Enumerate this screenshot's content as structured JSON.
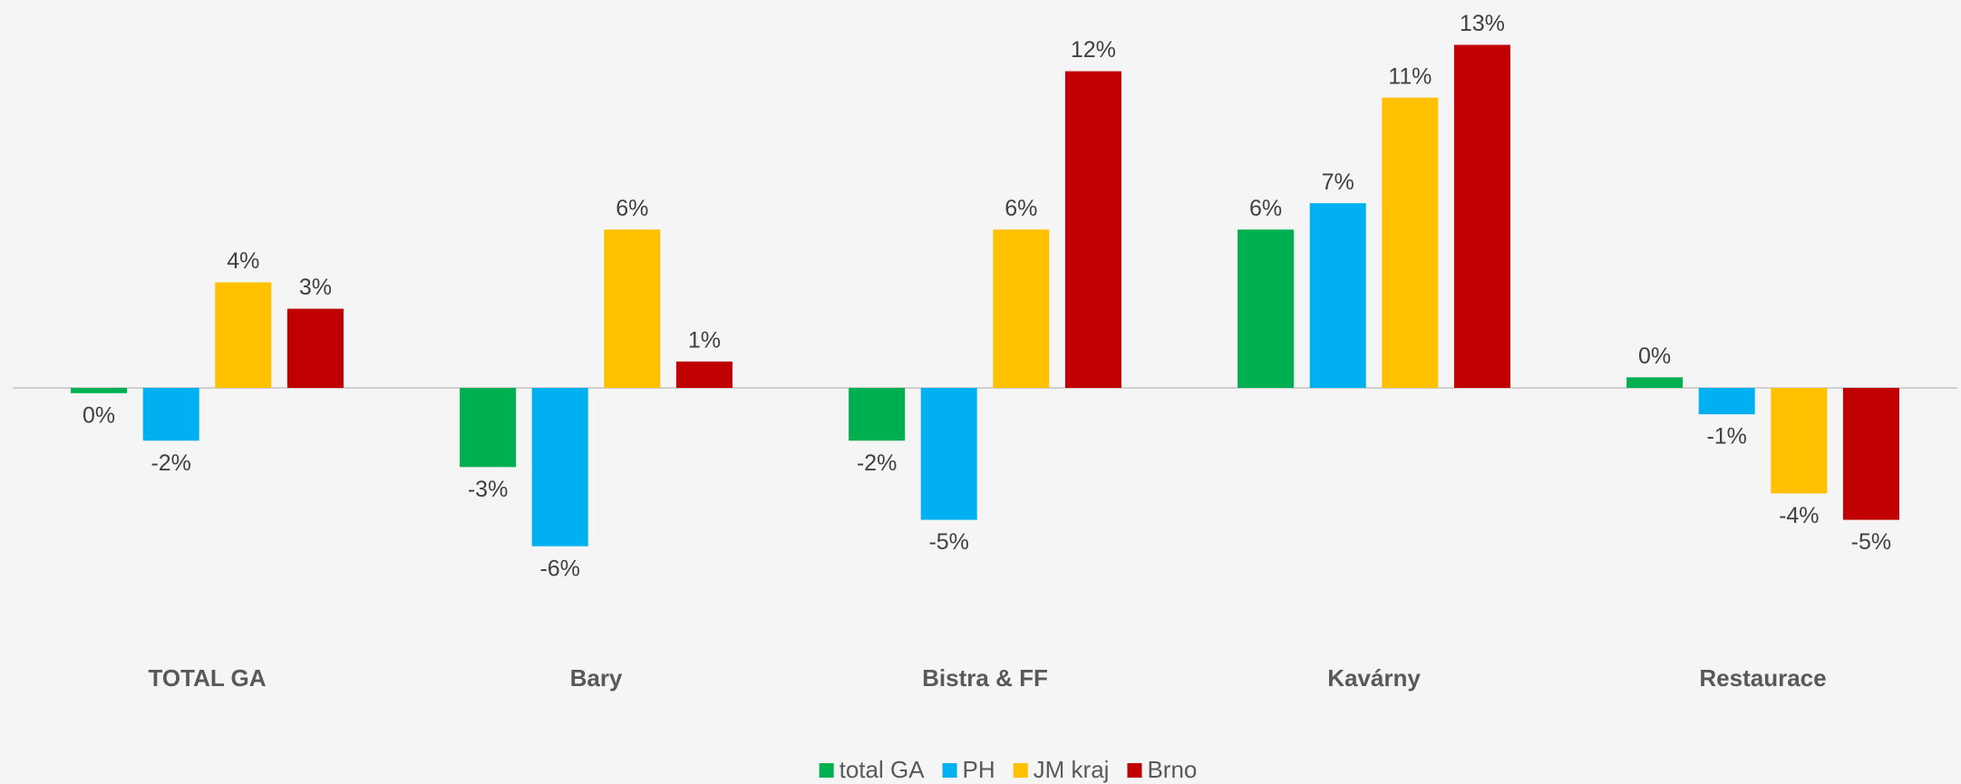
{
  "chart_data": {
    "type": "bar",
    "categories": [
      "TOTAL GA",
      "Bary",
      "Bistra & FF",
      "Kavárny",
      "Restaurace"
    ],
    "series": [
      {
        "name": "total GA",
        "color": "#00b050",
        "values": [
          -0.2,
          -3,
          -2,
          6,
          0.4
        ],
        "value_labels": [
          "0%",
          "-3%",
          "-2%",
          "6%",
          "0%"
        ]
      },
      {
        "name": "PH",
        "color": "#00b0f0",
        "values": [
          -2,
          -6,
          -5,
          7,
          -1
        ],
        "value_labels": [
          "-2%",
          "-6%",
          "-5%",
          "7%",
          "-1%"
        ]
      },
      {
        "name": "JM kraj",
        "color": "#ffc000",
        "values": [
          4,
          6,
          6,
          11,
          -4
        ],
        "value_labels": [
          "4%",
          "6%",
          "6%",
          "11%",
          "-4%"
        ]
      },
      {
        "name": "Brno",
        "color": "#c00000",
        "values": [
          3,
          1,
          12,
          13,
          -5
        ],
        "value_labels": [
          "3%",
          "1%",
          "12%",
          "13%",
          "-5%"
        ]
      }
    ],
    "ylim": [
      -9,
      14.7
    ]
  }
}
